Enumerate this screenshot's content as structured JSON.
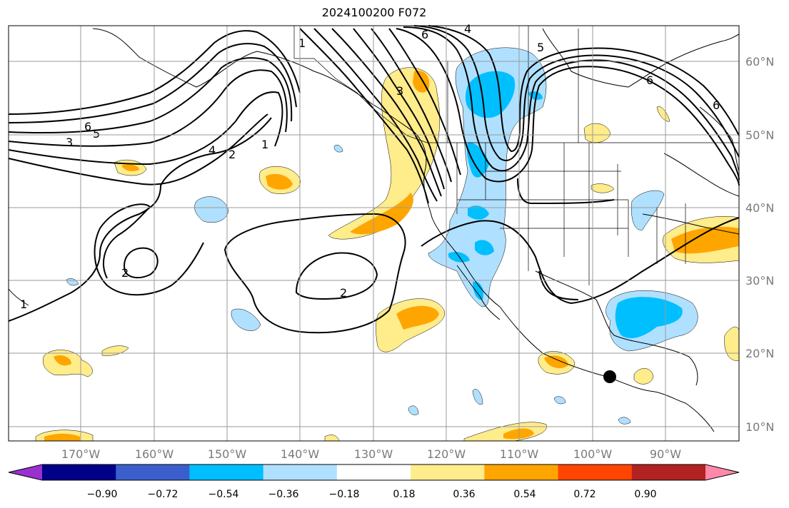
{
  "title": "2024100200 F072",
  "map": {
    "lat_labels": [
      "60°N",
      "50°N",
      "40°N",
      "30°N",
      "20°N",
      "10°N"
    ],
    "lon_labels": [
      "170°W",
      "160°W",
      "150°W",
      "140°W",
      "130°W",
      "120°W",
      "110°W",
      "100°W",
      "90°W"
    ],
    "contour_labels": [
      "1",
      "2",
      "3",
      "4",
      "5",
      "6"
    ],
    "marker": "black-dot"
  },
  "colorbar": {
    "ticks": [
      "−0.90",
      "−0.72",
      "−0.54",
      "−0.36",
      "−0.18",
      "0.18",
      "0.36",
      "0.54",
      "0.72",
      "0.90"
    ],
    "colors": [
      "#9b30d0",
      "#000088",
      "#3a5fcd",
      "#00bfff",
      "#b0e0ff",
      "#ffffff",
      "#ffec8b",
      "#ffa500",
      "#ff4500",
      "#b22222",
      "#ff88aa"
    ]
  }
}
